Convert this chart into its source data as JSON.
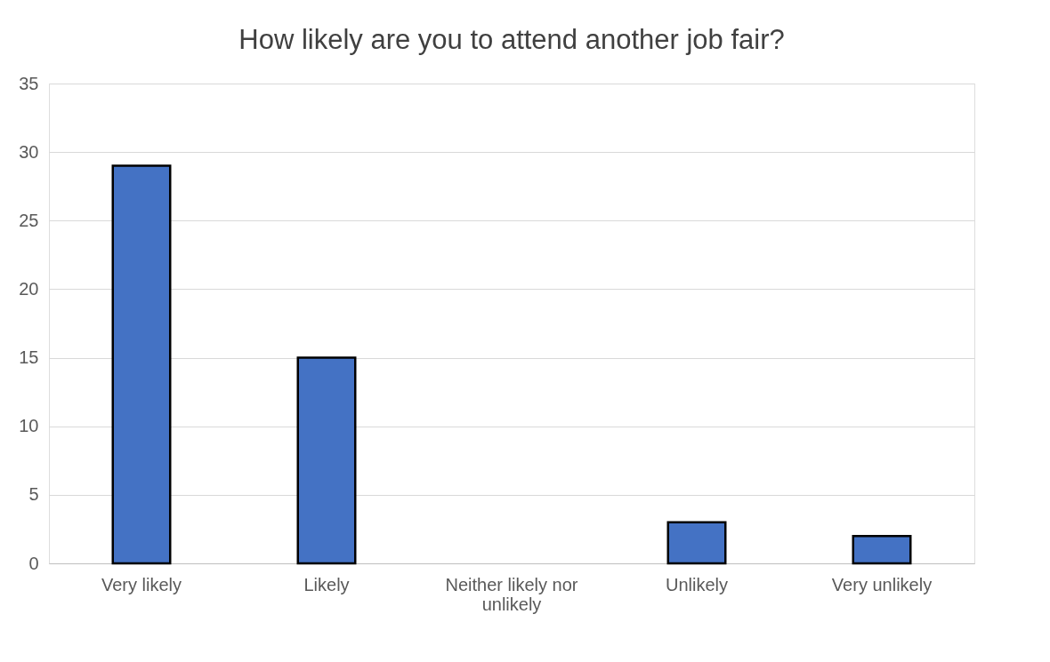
{
  "chart_data": {
    "type": "bar",
    "title": "How likely are you to attend another job fair?",
    "categories": [
      "Very likely",
      "Likely",
      "Neither likely nor unlikely",
      "Unlikely",
      "Very unlikely"
    ],
    "values": [
      29,
      15,
      0,
      3,
      2
    ],
    "color": "#4472c4",
    "ylim": [
      0,
      35
    ],
    "yticks": [
      0,
      5,
      10,
      15,
      20,
      25,
      30,
      35
    ],
    "grid": "y"
  }
}
